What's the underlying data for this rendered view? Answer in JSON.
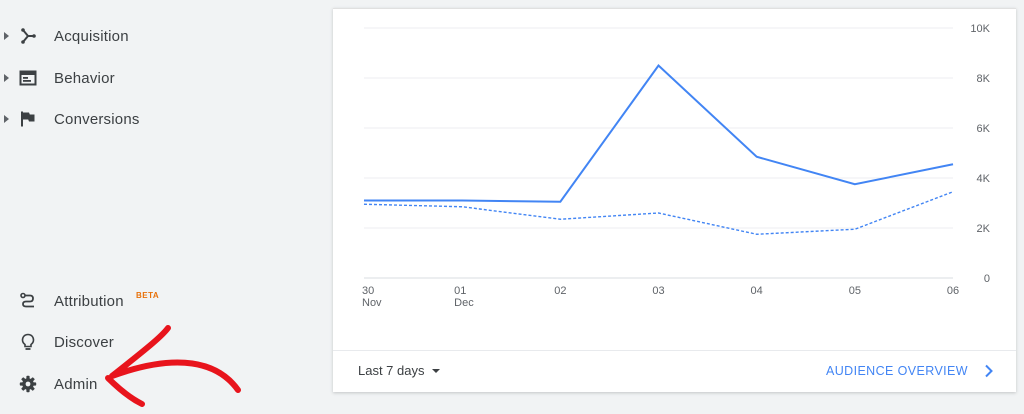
{
  "sidebar": {
    "items_top": [
      {
        "label": "Acquisition",
        "icon": "acquisition-icon"
      },
      {
        "label": "Behavior",
        "icon": "behavior-icon"
      },
      {
        "label": "Conversions",
        "icon": "flag-icon"
      }
    ],
    "items_bottom": [
      {
        "label": "Attribution",
        "badge": "BETA",
        "icon": "attribution-icon"
      },
      {
        "label": "Discover",
        "icon": "lightbulb-icon"
      },
      {
        "label": "Admin",
        "icon": "gear-icon"
      }
    ]
  },
  "card": {
    "date_range_label": "Last 7 days",
    "overview_link": "AUDIENCE OVERVIEW"
  },
  "annotation": {
    "color": "#e8141c"
  },
  "colors": {
    "accent": "#4285f4",
    "beta": "#e8710a"
  },
  "chart_data": {
    "type": "line",
    "x": [
      "30 Nov",
      "01 Dec",
      "02",
      "03",
      "04",
      "05",
      "06"
    ],
    "x_tick_labels": [
      [
        "30",
        "Nov"
      ],
      [
        "01",
        "Dec"
      ],
      [
        "02"
      ],
      [
        "03"
      ],
      [
        "04"
      ],
      [
        "05"
      ],
      [
        "06"
      ]
    ],
    "series": [
      {
        "values": [
          3100,
          3100,
          3050,
          8500,
          4850,
          3750,
          4550
        ],
        "style": "solid",
        "color": "#4285f4"
      },
      {
        "values": [
          2950,
          2850,
          2350,
          2600,
          1750,
          1950,
          3450
        ],
        "style": "dashed",
        "color": "#4285f4"
      }
    ],
    "ylim": [
      0,
      10000
    ],
    "y_ticks": [
      0,
      2000,
      4000,
      6000,
      8000,
      10000
    ],
    "y_tick_labels": [
      "0",
      "2K",
      "4K",
      "6K",
      "8K",
      "10K"
    ],
    "grid": true
  }
}
